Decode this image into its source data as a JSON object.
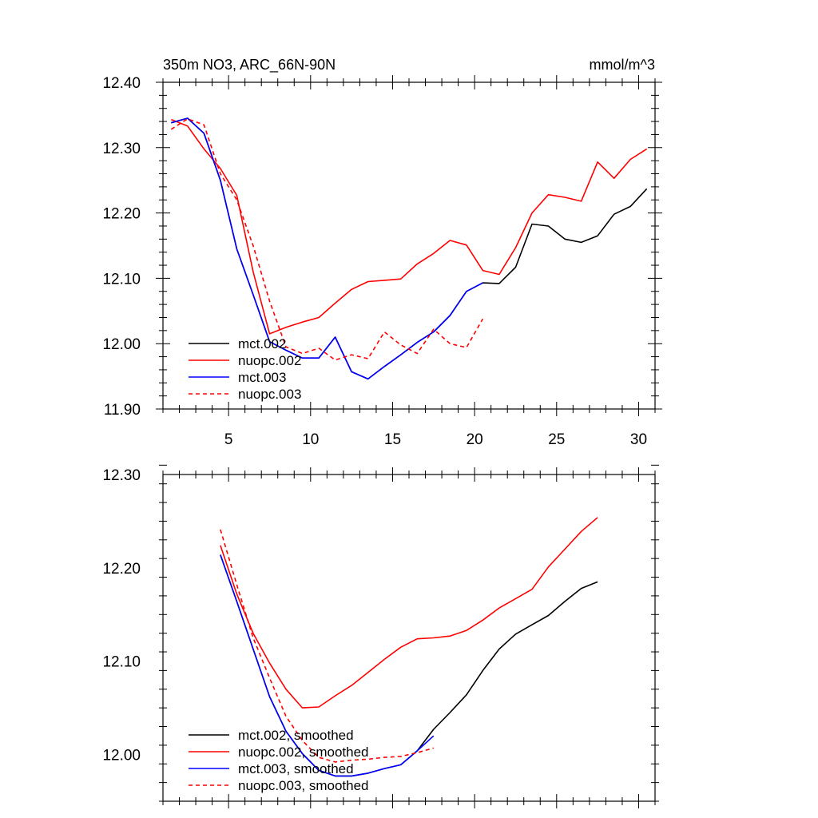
{
  "chart_data": [
    {
      "type": "line",
      "title_left": "350m NO3, ARC_66N-90N",
      "title_right": "mmol/m^3",
      "xlim": [
        1,
        31
      ],
      "ylim": [
        11.9,
        12.4
      ],
      "xticks": [
        5,
        10,
        15,
        20,
        25,
        30
      ],
      "xtick_labels": [
        "5",
        "10",
        "15",
        "20",
        "25",
        "30"
      ],
      "show_xtick_labels": true,
      "yticks": [
        11.9,
        12.0,
        12.1,
        12.2,
        12.3,
        12.4
      ],
      "ytick_labels": [
        "11.90",
        "12.00",
        "12.10",
        "12.20",
        "12.30",
        "12.40"
      ],
      "legend_position": "bottom-left",
      "series": [
        {
          "name": "mct.002",
          "color": "#000000",
          "dash": "solid",
          "x": [
            1.5,
            2.5,
            3.5,
            4.5,
            5.5,
            6.5,
            7.5,
            8.5,
            9.5,
            10.5,
            11.5,
            12.5,
            13.5,
            14.5,
            15.5,
            16.5,
            17.5,
            18.5,
            19.5,
            20.5,
            21.5,
            22.5,
            23.5,
            24.5,
            25.5,
            26.5,
            27.5,
            28.5,
            29.5,
            30.5
          ],
          "values": [
            12.338,
            12.345,
            12.322,
            12.25,
            12.145,
            12.075,
            12.003,
            11.99,
            11.978,
            11.978,
            12.01,
            11.957,
            11.946,
            11.965,
            11.983,
            12.002,
            12.018,
            12.043,
            12.08,
            12.093,
            12.092,
            12.117,
            12.183,
            12.18,
            12.16,
            12.155,
            12.165,
            12.198,
            12.21,
            12.237
          ]
        },
        {
          "name": "nuopc.002",
          "color": "#ff0000",
          "dash": "solid",
          "x": [
            1.5,
            2.5,
            3.5,
            4.5,
            5.5,
            6.5,
            7.5,
            8.5,
            9.5,
            10.5,
            11.5,
            12.5,
            13.5,
            14.5,
            15.5,
            16.5,
            17.5,
            18.5,
            19.5,
            20.5,
            21.5,
            22.5,
            23.5,
            24.5,
            25.5,
            26.5,
            27.5,
            28.5,
            29.5,
            30.5
          ],
          "values": [
            12.343,
            12.333,
            12.298,
            12.268,
            12.227,
            12.11,
            12.015,
            12.025,
            12.033,
            12.04,
            12.062,
            12.083,
            12.095,
            12.097,
            12.099,
            12.122,
            12.138,
            12.158,
            12.151,
            12.112,
            12.106,
            12.147,
            12.2,
            12.228,
            12.224,
            12.218,
            12.278,
            12.253,
            12.282,
            12.298
          ]
        },
        {
          "name": "mct.003",
          "color": "#0000ff",
          "dash": "solid",
          "x": [
            1.5,
            2.5,
            3.5,
            4.5,
            5.5,
            6.5,
            7.5,
            8.5,
            9.5,
            10.5,
            11.5,
            12.5,
            13.5,
            14.5,
            15.5,
            16.5,
            17.5,
            18.5,
            19.5,
            20.5
          ],
          "values": [
            12.338,
            12.345,
            12.322,
            12.25,
            12.145,
            12.075,
            12.003,
            11.99,
            11.978,
            11.978,
            12.01,
            11.957,
            11.946,
            11.965,
            11.983,
            12.002,
            12.018,
            12.043,
            12.08,
            12.093
          ]
        },
        {
          "name": "nuopc.003",
          "color": "#ff0000",
          "dash": "dashed",
          "x": [
            1.5,
            2.5,
            3.5,
            4.5,
            5.5,
            6.5,
            7.5,
            8.5,
            9.5,
            10.5,
            11.5,
            12.5,
            13.5,
            14.5,
            15.5,
            16.5,
            17.5,
            18.5,
            19.5,
            20.5
          ],
          "values": [
            12.328,
            12.344,
            12.335,
            12.26,
            12.22,
            12.15,
            12.065,
            11.995,
            11.985,
            11.993,
            11.975,
            11.983,
            11.977,
            12.018,
            11.998,
            11.985,
            12.022,
            12.0,
            11.994,
            12.038
          ]
        }
      ]
    },
    {
      "type": "line",
      "xlim": [
        1,
        31
      ],
      "ylim": [
        11.95,
        12.3
      ],
      "xticks": [
        5,
        10,
        15,
        20,
        25,
        30
      ],
      "xtick_labels": [
        "5",
        "10",
        "15",
        "20",
        "25",
        "30"
      ],
      "show_xtick_labels": false,
      "yticks": [
        12.0,
        12.1,
        12.2,
        12.3
      ],
      "ytick_labels": [
        "12.00",
        "12.10",
        "12.20",
        "12.30"
      ],
      "legend_position": "bottom-left",
      "series": [
        {
          "name": "mct.002, smoothed",
          "color": "#000000",
          "dash": "solid",
          "x": [
            4.5,
            5.5,
            6.5,
            7.5,
            8.5,
            9.5,
            10.5,
            11.5,
            12.5,
            13.5,
            14.5,
            15.5,
            16.5,
            17.5,
            18.5,
            19.5,
            20.5,
            21.5,
            22.5,
            23.5,
            24.5,
            25.5,
            26.5,
            27.5
          ],
          "values": [
            12.214,
            12.164,
            12.113,
            12.062,
            12.025,
            12.001,
            11.983,
            11.977,
            11.977,
            11.98,
            11.985,
            11.989,
            12.004,
            12.027,
            12.045,
            12.064,
            12.09,
            12.113,
            12.129,
            12.139,
            12.149,
            12.164,
            12.178,
            12.185
          ]
        },
        {
          "name": "nuopc.002, smoothed",
          "color": "#ff0000",
          "dash": "solid",
          "x": [
            4.5,
            5.5,
            6.5,
            7.5,
            8.5,
            9.5,
            10.5,
            11.5,
            12.5,
            13.5,
            14.5,
            15.5,
            16.5,
            17.5,
            18.5,
            19.5,
            20.5,
            21.5,
            22.5,
            23.5,
            24.5,
            25.5,
            26.5,
            27.5
          ],
          "values": [
            12.224,
            12.172,
            12.13,
            12.098,
            12.07,
            12.05,
            12.051,
            12.063,
            12.074,
            12.088,
            12.102,
            12.115,
            12.124,
            12.125,
            12.127,
            12.133,
            12.144,
            12.157,
            12.167,
            12.177,
            12.201,
            12.22,
            12.239,
            12.254
          ]
        },
        {
          "name": "mct.003, smoothed",
          "color": "#0000ff",
          "dash": "solid",
          "x": [
            4.5,
            5.5,
            6.5,
            7.5,
            8.5,
            9.5,
            10.5,
            11.5,
            12.5,
            13.5,
            14.5,
            15.5,
            16.5,
            17.5
          ],
          "values": [
            12.214,
            12.164,
            12.113,
            12.062,
            12.025,
            12.001,
            11.983,
            11.977,
            11.977,
            11.98,
            11.985,
            11.989,
            12.004,
            12.02
          ]
        },
        {
          "name": "nuopc.003, smoothed",
          "color": "#ff0000",
          "dash": "dashed",
          "x": [
            4.5,
            5.5,
            6.5,
            7.5,
            8.5,
            9.5,
            10.5,
            11.5,
            12.5,
            13.5,
            14.5,
            15.5,
            16.5,
            17.5
          ],
          "values": [
            12.241,
            12.182,
            12.125,
            12.082,
            12.041,
            12.015,
            11.997,
            11.992,
            11.994,
            11.995,
            11.997,
            11.998,
            12.002,
            12.007
          ]
        }
      ]
    }
  ]
}
